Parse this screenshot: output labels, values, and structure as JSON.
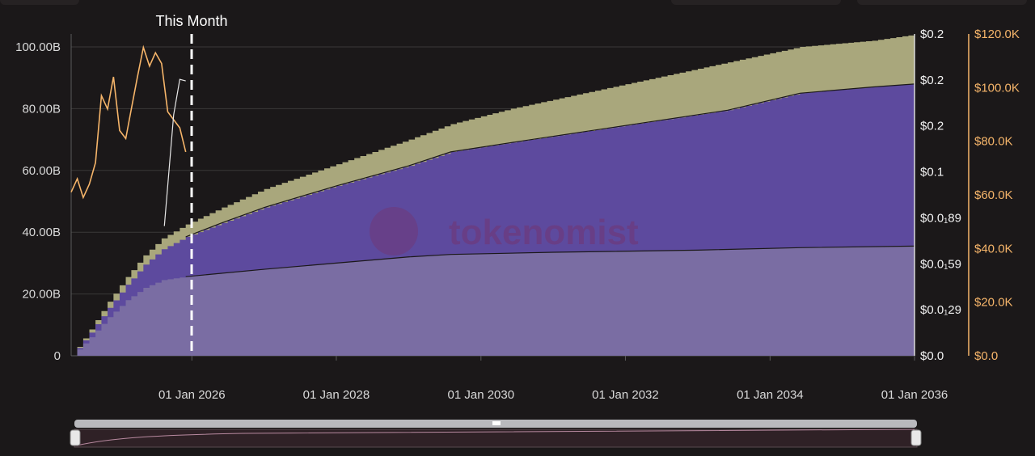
{
  "marker_label": "This Month",
  "watermark": "tokenomist",
  "colors": {
    "base_area": "#7a6da3",
    "mid_area": "#5d4a9e",
    "top_area": "#a9a77c",
    "price_line": "#f6b56a",
    "second_line": "#e8e8e8",
    "background": "#1b1819"
  },
  "chart_data": {
    "type": "area",
    "x_axis": {
      "ticks": [
        "01 Jan 2026",
        "01 Jan 2028",
        "01 Jan 2030",
        "01 Jan 2032",
        "01 Jan 2034",
        "01 Jan 2036"
      ],
      "range": [
        "2024-05-01",
        "2036-01-01"
      ]
    },
    "y_left": {
      "ticks": [
        "0",
        "20.00B",
        "40.00B",
        "60.00B",
        "80.00B",
        "100.00B"
      ],
      "range": [
        0,
        100000000000
      ]
    },
    "y_right_price": {
      "ticks": [
        "$0.0",
        "$0.0₁29",
        "$0.0₁59",
        "$0.0₁89",
        "$0.1",
        "$0.2",
        "$0.2",
        "$0.2"
      ]
    },
    "y_right_usd": {
      "ticks": [
        "$0.0",
        "$20.0K",
        "$40.0K",
        "$60.0K",
        "$80.0K",
        "$100.0K",
        "$120.0K"
      ],
      "range": [
        0,
        120000
      ]
    },
    "grid": true,
    "marker_date": "2025-12-01",
    "series": [
      {
        "x": [
          "2024-05-01",
          "2024-08-01",
          "2024-11-01",
          "2025-02-01",
          "2025-05-01",
          "2025-08-01",
          "2025-12-01",
          "2027-01-01",
          "2028-01-01",
          "2029-01-01",
          "2029-08-01",
          "2031-01-01",
          "2033-01-01",
          "2034-06-01",
          "2036-01-01"
        ],
        "values": [
          0,
          6000000000,
          12500000000,
          18000000000,
          22000000000,
          24500000000,
          25600000000,
          28000000000,
          30000000000,
          32000000000,
          32800000000,
          33500000000,
          34200000000,
          35000000000,
          35500000000
        ]
      },
      {
        "x": [
          "2024-05-01",
          "2024-08-01",
          "2024-11-01",
          "2025-02-01",
          "2025-05-01",
          "2025-08-01",
          "2025-12-01",
          "2026-06-01",
          "2027-01-01",
          "2028-01-01",
          "2029-01-01",
          "2029-08-01",
          "2030-06-01",
          "2031-06-01",
          "2032-06-01",
          "2033-06-01",
          "2034-06-01",
          "2035-06-01",
          "2036-01-01"
        ],
        "values": [
          0,
          7500000000,
          15500000000,
          23000000000,
          29500000000,
          34500000000,
          38500000000,
          43000000000,
          48000000000,
          55000000000,
          61500000000,
          66000000000,
          69000000000,
          72500000000,
          76000000000,
          79500000000,
          85000000000,
          87000000000,
          88000000000
        ]
      },
      {
        "x": [
          "2024-05-01",
          "2024-08-01",
          "2024-11-01",
          "2025-02-01",
          "2025-05-01",
          "2025-08-01",
          "2025-12-01",
          "2026-06-01",
          "2027-01-01",
          "2028-01-01",
          "2029-01-01",
          "2029-08-01",
          "2030-06-01",
          "2031-06-01",
          "2032-06-01",
          "2033-06-01",
          "2034-06-01",
          "2035-06-01",
          "2036-01-01"
        ],
        "values": [
          0,
          8500000000,
          17500000000,
          25500000000,
          32500000000,
          38000000000,
          42500000000,
          48000000000,
          54000000000,
          62000000000,
          70000000000,
          75000000000,
          80000000000,
          85000000000,
          90000000000,
          95000000000,
          100000000000,
          102000000000,
          104000000000
        ]
      }
    ],
    "price_line": {
      "x": [
        "2024-05-01",
        "2024-06-01",
        "2024-07-01",
        "2024-08-01",
        "2024-09-01",
        "2024-10-01",
        "2024-11-01",
        "2024-12-01",
        "2025-01-01",
        "2025-02-01",
        "2025-03-01",
        "2025-04-01",
        "2025-05-01",
        "2025-06-01",
        "2025-07-01",
        "2025-08-01",
        "2025-09-01",
        "2025-10-01",
        "2025-11-01",
        "2025-12-01"
      ],
      "values": [
        61000,
        66000,
        59000,
        64000,
        72000,
        97000,
        92000,
        104000,
        84000,
        81000,
        92000,
        104000,
        115000,
        108000,
        113000,
        109000,
        91000,
        88000,
        85000,
        76000
      ]
    },
    "second_line": {
      "x": [
        "2025-08-15",
        "2025-10-01",
        "2025-11-01",
        "2025-12-01"
      ],
      "values": [
        42000000000,
        78000000000,
        89500000000,
        89000000000
      ]
    }
  }
}
